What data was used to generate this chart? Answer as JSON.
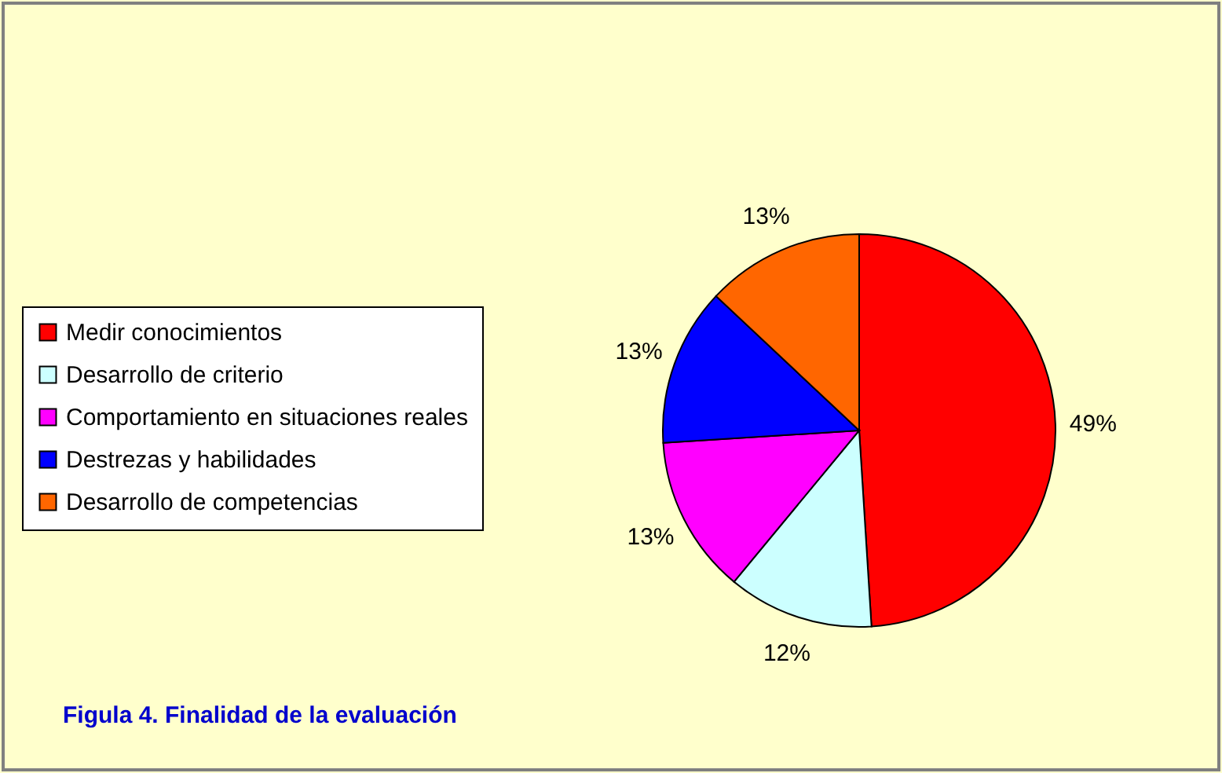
{
  "chart_data": {
    "type": "pie",
    "title": "Figula 4. Finalidad de la evaluación",
    "categories": [
      "Medir conocimientos",
      "Desarrollo de criterio",
      "Comportamiento en situaciones reales",
      "Destrezas y habilidades",
      "Desarrollo de competencias"
    ],
    "values": [
      49,
      12,
      13,
      13,
      13
    ],
    "colors": [
      "#ff0000",
      "#ccffff",
      "#ff00ff",
      "#0000ff",
      "#ff6600"
    ],
    "value_labels": [
      "49%",
      "12%",
      "13%",
      "13%",
      "13%"
    ],
    "legend": "left"
  }
}
